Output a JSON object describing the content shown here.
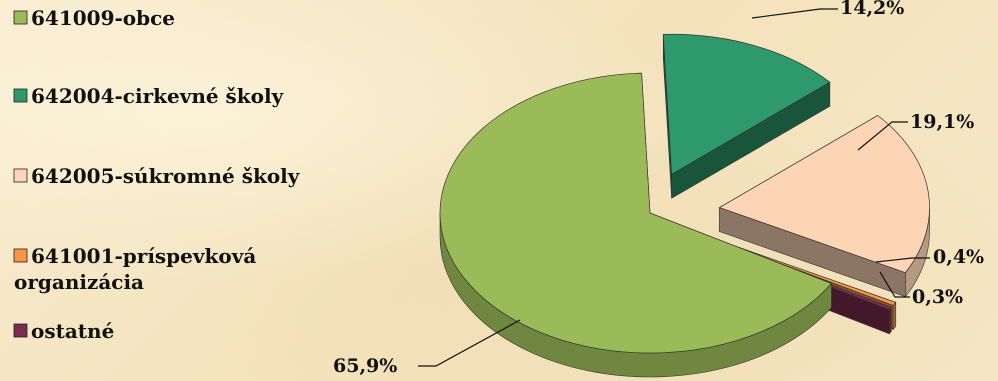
{
  "chart_data": {
    "type": "pie",
    "style": "3d-exploded",
    "title": "",
    "legend_position": "left",
    "series": [
      {
        "name": "641009-obce",
        "label_lines": [
          "641009-obce"
        ],
        "value": 65.9,
        "label": "65,9%",
        "color": "#9bbb59"
      },
      {
        "name": "642004-cirkevné školy",
        "label_lines": [
          "642004-cirkevné školy"
        ],
        "value": 14.2,
        "label": "14,2%",
        "color": "#2e9a6b"
      },
      {
        "name": "642005-súkromné školy",
        "label_lines": [
          "642005-súkromné školy"
        ],
        "value": 19.1,
        "label": "19,1%",
        "color": "#fcd5b5"
      },
      {
        "name": "641001-príspevková organizácia",
        "label_lines": [
          "641001-príspevková",
          "organizácia"
        ],
        "value": 0.4,
        "label": "0,4%",
        "color": "#f79646"
      },
      {
        "name": "ostatné",
        "label_lines": [
          "ostatné"
        ],
        "value": 0.3,
        "label": "0,3%",
        "color": "#7b2c4f"
      }
    ]
  }
}
